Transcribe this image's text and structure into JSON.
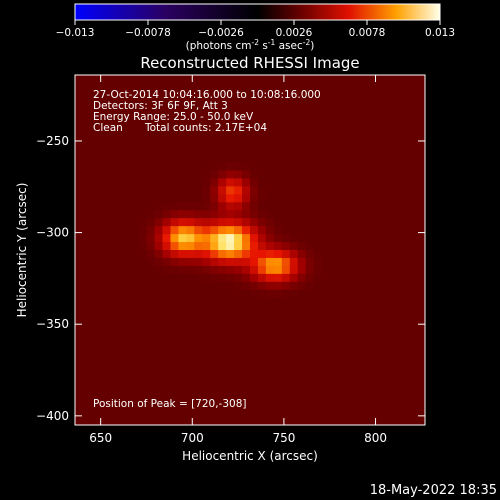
{
  "chart_data": {
    "type": "heatmap",
    "title": "Reconstructed RHESSI Image",
    "xlabel": "Heliocentric X (arcsec)",
    "ylabel": "Heliocentric Y (arcsec)",
    "xlim": [
      636,
      827
    ],
    "ylim": [
      -405,
      -214
    ],
    "x_ticks": [
      650,
      700,
      750,
      800
    ],
    "y_ticks": [
      -250,
      -300,
      -350,
      -400
    ],
    "colorbar": {
      "label_prefix": "(photons cm",
      "label_sup1": "-2",
      "label_mid": " s",
      "label_sup2": "-1",
      "label_end": " asec",
      "label_sup3": "-2",
      "label_close": ")",
      "min": -0.013,
      "max": 0.013,
      "tick_labels": [
        "−0.013",
        "−0.0078",
        "−0.0026",
        "0.0026",
        "0.0078",
        "0.013"
      ],
      "tick_values": [
        -0.013,
        -0.0078,
        -0.0026,
        0.0026,
        0.0078,
        0.013
      ]
    },
    "sources": [
      {
        "x": 720,
        "y": -305,
        "peak": 0.013
      },
      {
        "x": 695,
        "y": -303,
        "peak": 0.0105
      },
      {
        "x": 745,
        "y": -318,
        "peak": 0.0095
      },
      {
        "x": 722,
        "y": -278,
        "peak": 0.0065
      }
    ]
  },
  "annotations": {
    "time_range": "27-Oct-2014 10:04:16.000 to 10:08:16.000",
    "detectors": "Detectors: 3F 6F 9F, Att 3",
    "energy": "Energy Range: 25.0 - 50.0 keV",
    "method": "Clean",
    "counts": "Total counts: 2.17E+04",
    "peak": "Position of Peak = [720,-308]"
  },
  "footer": {
    "date": "18-May-2022 18:35"
  }
}
